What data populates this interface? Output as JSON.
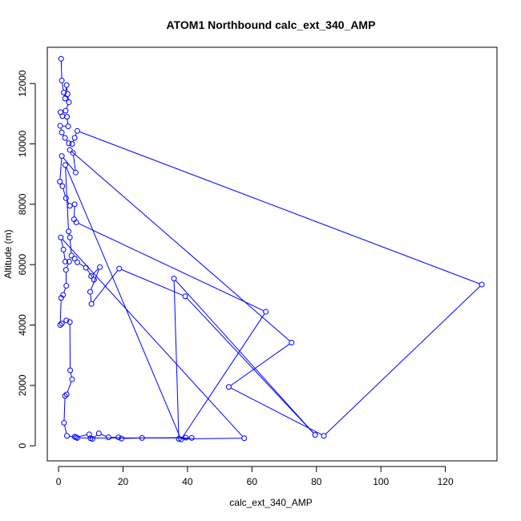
{
  "chart_data": {
    "type": "line",
    "title": "ATOM1 Northbound calc_ext_340_AMP",
    "xlabel": "calc_ext_340_AMP",
    "ylabel": "Altitude (m)",
    "xlim": [
      -3.5,
      136
    ],
    "ylim": [
      -500,
      13200
    ],
    "xticks": [
      0,
      20,
      40,
      60,
      80,
      100,
      120
    ],
    "yticks": [
      0,
      2000,
      4000,
      6000,
      8000,
      10000,
      12000
    ],
    "series_color": "#0000ff",
    "marker": "open-circle",
    "series": [
      {
        "points": [
          [
            0.8,
            12820
          ],
          [
            1.0,
            12100
          ],
          [
            1.6,
            11700
          ],
          [
            2.0,
            11500
          ],
          [
            2.5,
            11950
          ],
          [
            2.8,
            11650
          ],
          [
            3.2,
            11380
          ],
          [
            2.2,
            11100
          ],
          [
            0.6,
            11050
          ],
          [
            1.2,
            10920
          ],
          [
            2.6,
            10900
          ],
          [
            3.0,
            10580
          ],
          [
            0.5,
            10600
          ],
          [
            1.0,
            10380
          ],
          [
            2.0,
            10200
          ],
          [
            3.2,
            10020
          ],
          [
            4.2,
            10000
          ],
          [
            5.0,
            10200
          ],
          [
            5.8,
            10430
          ],
          [
            131.3,
            5340
          ],
          [
            82.3,
            330
          ],
          [
            52.8,
            1950
          ],
          [
            72.3,
            3420
          ],
          [
            3.5,
            9800
          ],
          [
            4.5,
            9700
          ],
          [
            5.3,
            9050
          ],
          [
            1.0,
            9600
          ],
          [
            0.4,
            8750
          ],
          [
            1.2,
            8600
          ],
          [
            2.3,
            8200
          ],
          [
            3.5,
            7950
          ],
          [
            5.0,
            8000
          ],
          [
            4.8,
            7500
          ],
          [
            5.5,
            7400
          ],
          [
            64.3,
            4440
          ],
          [
            38.0,
            210
          ],
          [
            2.1,
            9300
          ],
          [
            3.1,
            7100
          ],
          [
            3.5,
            6900
          ],
          [
            4.0,
            6300
          ],
          [
            5.0,
            6200
          ],
          [
            5.8,
            6080
          ],
          [
            8.5,
            5900
          ],
          [
            11.0,
            5500
          ],
          [
            10.1,
            5620
          ],
          [
            12.8,
            5920
          ],
          [
            9.8,
            5100
          ],
          [
            10.2,
            4700
          ],
          [
            18.8,
            5870
          ],
          [
            39.3,
            4950
          ],
          [
            79.6,
            360
          ],
          [
            35.8,
            5540
          ],
          [
            37.3,
            230
          ],
          [
            57.6,
            250
          ],
          [
            0.7,
            6900
          ],
          [
            1.5,
            6500
          ],
          [
            2.1,
            6100
          ],
          [
            3.3,
            6100
          ],
          [
            2.3,
            5830
          ],
          [
            2.4,
            5300
          ],
          [
            1.4,
            5000
          ],
          [
            0.8,
            4900
          ],
          [
            0.5,
            4000
          ],
          [
            1.0,
            4050
          ],
          [
            2.4,
            4150
          ],
          [
            3.5,
            4100
          ],
          [
            3.6,
            2500
          ],
          [
            4.2,
            2200
          ],
          [
            2.5,
            1700
          ],
          [
            2.0,
            1650
          ],
          [
            1.7,
            760
          ],
          [
            2.6,
            330
          ],
          [
            5.4,
            280
          ],
          [
            9.5,
            380
          ],
          [
            9.9,
            250
          ],
          [
            10.5,
            230
          ],
          [
            12.5,
            410
          ],
          [
            15.5,
            280
          ],
          [
            18.6,
            280
          ],
          [
            19.5,
            240
          ],
          [
            25.9,
            260
          ],
          [
            39.5,
            270
          ],
          [
            41.3,
            260
          ],
          [
            5.8,
            260
          ],
          [
            5.0,
            300
          ]
        ]
      }
    ]
  }
}
